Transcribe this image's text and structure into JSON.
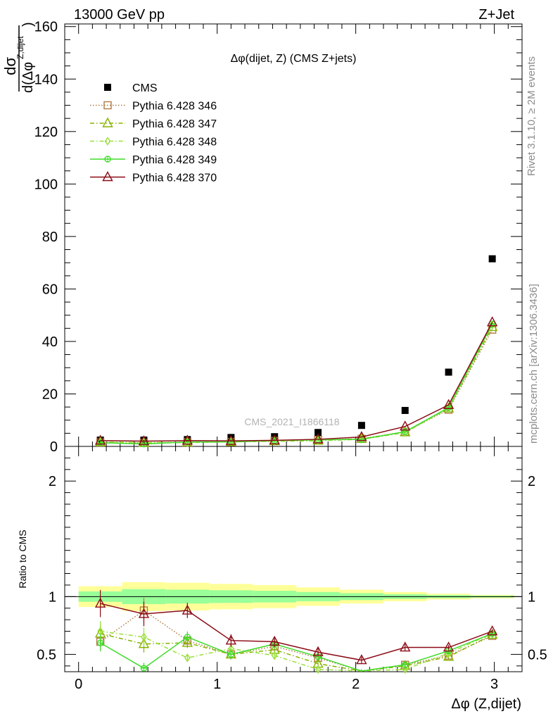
{
  "header": {
    "left": "13000 GeV pp",
    "right": "Z+Jet"
  },
  "side": {
    "top": "Rivet 3.1.10, ≥ 2M events",
    "bottom": "mcplots.cern.ch [arXiv:1306.3436]"
  },
  "watermark": "CMS_2021_I1866118",
  "ylabel_top": {
    "numerator": "dσ",
    "denominator": "d(Δφ",
    "superscript": "Z,dijet",
    "close": ")"
  },
  "chart_data": {
    "type": "scatter",
    "title": "Δφ(dijet, Z) (CMS Z+jets)",
    "xlabel": "Δφ (Z,dijet)",
    "xlim": [
      -0.1,
      3.2
    ],
    "xticks": [
      0,
      1,
      2,
      3
    ],
    "legend_position": "top-left",
    "x": [
      0.157,
      0.471,
      0.785,
      1.1,
      1.414,
      1.728,
      2.042,
      2.356,
      2.67,
      2.985
    ],
    "main_panel": {
      "ylim": [
        0,
        161
      ],
      "yticks": [
        0,
        20,
        40,
        60,
        80,
        100,
        120,
        140,
        160
      ],
      "series": [
        {
          "name": "CMS",
          "color": "#000000",
          "marker": "square-filled",
          "line": "none",
          "values": [
            2.4,
            2.4,
            2.6,
            3.4,
            3.7,
            5.3,
            8.0,
            13.7,
            28.3,
            71.5
          ]
        },
        {
          "name": "Pythia 6.428 346",
          "color": "#b07b43",
          "marker": "square-open",
          "line": "dotted",
          "values": [
            1.5,
            1.3,
            1.6,
            1.7,
            2.1,
            2.5,
            2.9,
            5.6,
            14.0,
            44.5
          ]
        },
        {
          "name": "Pythia 6.428 347",
          "color": "#86b300",
          "marker": "triangle-open",
          "line": "dashdot",
          "values": [
            1.6,
            1.4,
            1.5,
            1.7,
            2.0,
            2.2,
            2.9,
            5.4,
            14.5,
            45.5
          ]
        },
        {
          "name": "Pythia 6.428 348",
          "color": "#9be03c",
          "marker": "diamond-open",
          "line": "dashdot",
          "values": [
            1.7,
            1.5,
            1.4,
            1.8,
            1.9,
            2.1,
            2.7,
            5.2,
            14.6,
            46.2
          ]
        },
        {
          "name": "Pythia 6.428 349",
          "color": "#3fdc2a",
          "marker": "circle-cross",
          "line": "solid",
          "values": [
            1.4,
            0.9,
            1.7,
            1.7,
            2.2,
            2.5,
            2.7,
            5.6,
            14.8,
            46.7
          ]
        },
        {
          "name": "Pythia 6.428 370",
          "color": "#8b0b16",
          "marker": "triangle-open",
          "line": "solid",
          "values": [
            2.2,
            2.0,
            2.2,
            2.1,
            2.3,
            2.7,
            3.6,
            7.6,
            15.8,
            47.3
          ]
        }
      ]
    },
    "ratio_panel": {
      "ylabel": "Ratio to CMS",
      "ylim": [
        0.35,
        2.3
      ],
      "yticks": [
        0.5,
        1,
        2
      ],
      "ytick_labels": [
        "0.5",
        "1",
        "2"
      ],
      "bands": {
        "edges": [
          0,
          0.314,
          0.628,
          0.942,
          1.257,
          1.571,
          1.885,
          2.199,
          2.513,
          2.827,
          3.142
        ],
        "yellow_half_width": [
          0.09,
          0.125,
          0.12,
          0.11,
          0.1,
          0.08,
          0.06,
          0.04,
          0.025,
          0.015
        ],
        "green_half_width": [
          0.045,
          0.065,
          0.06,
          0.055,
          0.05,
          0.04,
          0.03,
          0.02,
          0.013,
          0.008
        ],
        "yellow_color": "#ffff99",
        "green_color": "#99ff99"
      },
      "series": [
        {
          "name": "Pythia 6.428 346",
          "values": [
            0.61,
            0.88,
            0.62,
            0.5,
            0.57,
            0.47,
            0.32,
            0.41,
            0.49,
            0.66
          ]
        },
        {
          "name": "Pythia 6.428 347",
          "values": [
            0.68,
            0.59,
            0.6,
            0.5,
            0.54,
            0.42,
            0.35,
            0.4,
            0.48,
            0.67
          ]
        },
        {
          "name": "Pythia 6.428 348",
          "values": [
            0.7,
            0.65,
            0.47,
            0.55,
            0.49,
            0.37,
            0.33,
            0.37,
            0.51,
            0.68
          ]
        },
        {
          "name": "Pythia 6.428 349",
          "values": [
            0.6,
            0.38,
            0.65,
            0.5,
            0.59,
            0.48,
            0.35,
            0.41,
            0.53,
            0.68
          ]
        },
        {
          "name": "Pythia 6.428 370",
          "values": [
            0.94,
            0.85,
            0.88,
            0.62,
            0.61,
            0.52,
            0.45,
            0.56,
            0.56,
            0.7
          ]
        }
      ],
      "errors": [
        0.1,
        0.1,
        0.06,
        0.07,
        0.06,
        0.05,
        0.05,
        0.04,
        0.03,
        0.02
      ]
    }
  }
}
